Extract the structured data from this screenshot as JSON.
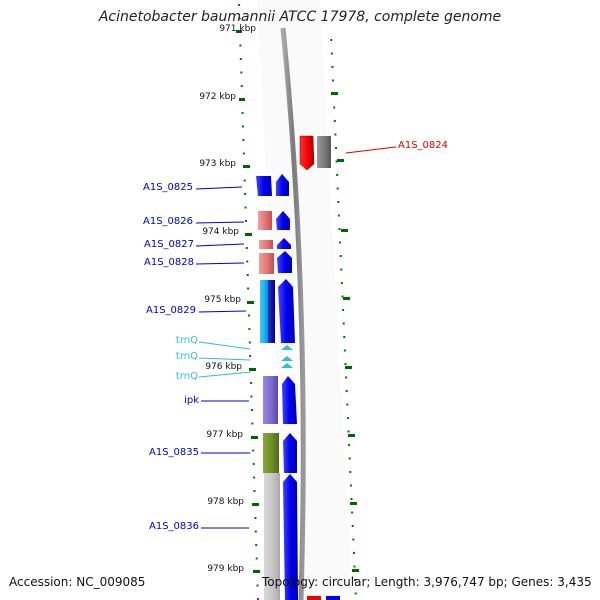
{
  "title": "Acinetobacter baumannii ATCC 17978, complete genome",
  "accession": "Accession: NC_009085",
  "topology": "Topology: circular; Length: 3,976,747 bp; Genes: 3,435",
  "ticks": [
    "971 kbp",
    "972 kbp",
    "973 kbp",
    "974 kbp",
    "975 kbp",
    "976 kbp",
    "977 kbp",
    "978 kbp",
    "979 kbp"
  ],
  "labels": {
    "a1s0824": "A1S_0824",
    "a1s0825": "A1S_0825",
    "a1s0826": "A1S_0826",
    "a1s0827": "A1S_0827",
    "a1s0828": "A1S_0828",
    "a1s0829": "A1S_0829",
    "trnq1": "trnQ",
    "trnq2": "trnQ",
    "trnq3": "trnQ",
    "ipk": "ipk",
    "a1s0835": "A1S_0835",
    "a1s0836": "A1S_0836"
  },
  "colors": {
    "gene_blue": "#0000ee",
    "label_blue": "#0000cc",
    "label_red": "#dd0000",
    "trna_cyan": "#33bbdd",
    "tick_green": "#006600",
    "backbone_gray": "#808080"
  }
}
